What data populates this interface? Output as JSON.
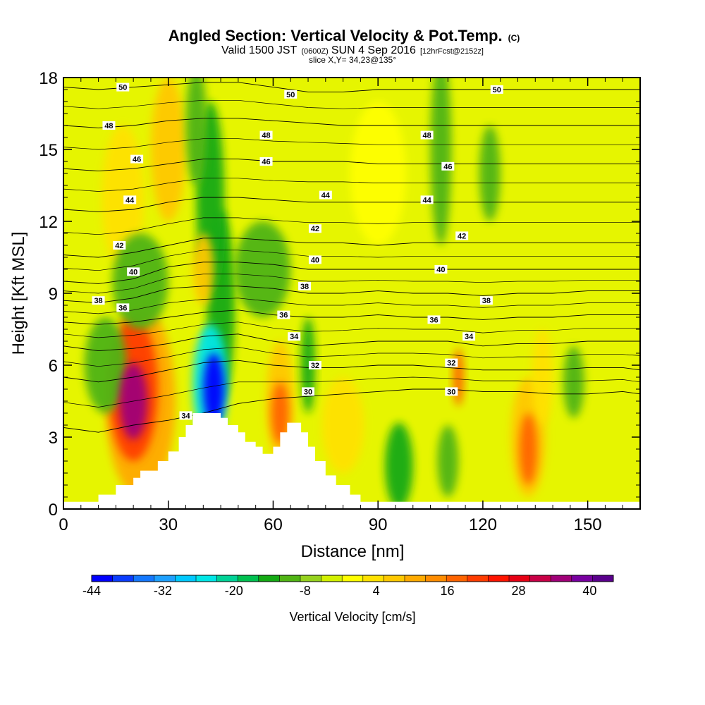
{
  "title": {
    "line1": "Angled Section: Vertical Velocity & Pot.Temp.",
    "line1_suffix": "(C)",
    "line2_a": "Valid 1500 JST",
    "line2_b": "(0600Z)",
    "line2_c": "SUN 4 Sep 2016",
    "line2_d": "[12hrFcst@2152z]",
    "line3": "slice X,Y= 34,23@135°"
  },
  "chart_data": {
    "type": "heatmap",
    "xlabel": "Distance [nm]",
    "ylabel": "Height [Kft MSL]",
    "xlim": [
      0,
      165
    ],
    "ylim": [
      0,
      18
    ],
    "x_ticks": [
      "0",
      "30",
      "60",
      "90",
      "120",
      "150"
    ],
    "x_tick_values": [
      0,
      30,
      60,
      90,
      120,
      150
    ],
    "y_ticks": [
      "0",
      "3",
      "6",
      "9",
      "12",
      "15",
      "18"
    ],
    "y_tick_values": [
      0,
      3,
      6,
      9,
      12,
      15,
      18
    ],
    "colorbar": {
      "title": "Vertical Velocity [cm/s]",
      "min": -44,
      "max": 44,
      "step": 4,
      "tick_labels": [
        "-44",
        "-32",
        "-20",
        "-8",
        "4",
        "16",
        "28",
        "40"
      ],
      "tick_values": [
        -44,
        -32,
        -20,
        -8,
        4,
        16,
        28,
        40
      ],
      "colors": [
        "#0000ff",
        "#0a3cff",
        "#1478ff",
        "#1ea0ff",
        "#00c8ff",
        "#00e6e6",
        "#00d296",
        "#00c050",
        "#14aa14",
        "#50b414",
        "#96d21e",
        "#d2f000",
        "#ffff00",
        "#ffe100",
        "#ffc800",
        "#ffaa00",
        "#ff8c00",
        "#ff6400",
        "#ff3c00",
        "#ff1400",
        "#e60014",
        "#c80046",
        "#a00078",
        "#7800a0",
        "#5a008c"
      ]
    },
    "velocity_cells": [
      {
        "x": 20,
        "y": 4.5,
        "value": 44,
        "sx": 4,
        "sy": 1.6
      },
      {
        "x": 20,
        "y": 5,
        "value": 30,
        "sx": 7,
        "sy": 3
      },
      {
        "x": 22,
        "y": 4.5,
        "value": 16,
        "sx": 10,
        "sy": 4
      },
      {
        "x": 43,
        "y": 5,
        "value": -44,
        "sx": 3,
        "sy": 1.5
      },
      {
        "x": 42,
        "y": 5.2,
        "value": -24,
        "sx": 5,
        "sy": 2.5
      },
      {
        "x": 45,
        "y": 8.5,
        "value": -10,
        "sx": 4,
        "sy": 4
      },
      {
        "x": 42,
        "y": 13,
        "value": -10,
        "sx": 4,
        "sy": 4
      },
      {
        "x": 38,
        "y": 16,
        "value": -8,
        "sx": 3,
        "sy": 2.5
      },
      {
        "x": 30,
        "y": 15,
        "value": 12,
        "sx": 5,
        "sy": 3
      },
      {
        "x": 40,
        "y": 10,
        "value": 14,
        "sx": 3,
        "sy": 1.5
      },
      {
        "x": 17,
        "y": 13,
        "value": 8,
        "sx": 6,
        "sy": 3
      },
      {
        "x": 22,
        "y": 9.5,
        "value": -8,
        "sx": 8,
        "sy": 2
      },
      {
        "x": 12,
        "y": 6,
        "value": -6,
        "sx": 6,
        "sy": 2
      },
      {
        "x": 62,
        "y": 4,
        "value": 26,
        "sx": 2.5,
        "sy": 1.3
      },
      {
        "x": 62,
        "y": 4.5,
        "value": 12,
        "sx": 4,
        "sy": 2.5
      },
      {
        "x": 70,
        "y": 6,
        "value": -10,
        "sx": 2,
        "sy": 2
      },
      {
        "x": 96,
        "y": 1.8,
        "value": -12,
        "sx": 4,
        "sy": 1.8
      },
      {
        "x": 113,
        "y": 5.5,
        "value": 26,
        "sx": 1.5,
        "sy": 1.2
      },
      {
        "x": 110,
        "y": 2,
        "value": -8,
        "sx": 3,
        "sy": 1.5
      },
      {
        "x": 108,
        "y": 15,
        "value": -6,
        "sx": 3,
        "sy": 4
      },
      {
        "x": 122,
        "y": 14,
        "value": -6,
        "sx": 3,
        "sy": 2
      },
      {
        "x": 133,
        "y": 2.5,
        "value": 26,
        "sx": 2.5,
        "sy": 1.5
      },
      {
        "x": 133,
        "y": 3,
        "value": 12,
        "sx": 5,
        "sy": 2.5
      },
      {
        "x": 137,
        "y": 5.5,
        "value": 10,
        "sx": 3,
        "sy": 2
      },
      {
        "x": 146,
        "y": 5.3,
        "value": -8,
        "sx": 3,
        "sy": 1.5
      },
      {
        "x": 80,
        "y": 3.5,
        "value": 8,
        "sx": 6,
        "sy": 2
      },
      {
        "x": 57,
        "y": 10,
        "value": -6,
        "sx": 8,
        "sy": 2
      },
      {
        "x": 90,
        "y": 14,
        "value": 6,
        "sx": 8,
        "sy": 3
      }
    ],
    "terrain": [
      [
        0,
        0.3
      ],
      [
        10,
        0.3
      ],
      [
        10,
        0.6
      ],
      [
        15,
        0.6
      ],
      [
        15,
        1.0
      ],
      [
        20,
        1.0
      ],
      [
        20,
        1.3
      ],
      [
        22,
        1.3
      ],
      [
        22,
        1.6
      ],
      [
        27,
        1.6
      ],
      [
        27,
        2.0
      ],
      [
        30,
        2.0
      ],
      [
        30,
        2.4
      ],
      [
        33,
        2.4
      ],
      [
        33,
        3.0
      ],
      [
        35,
        3.0
      ],
      [
        35,
        3.5
      ],
      [
        37,
        3.5
      ],
      [
        37,
        4.0
      ],
      [
        45,
        4.0
      ],
      [
        45,
        3.8
      ],
      [
        47,
        3.8
      ],
      [
        47,
        3.5
      ],
      [
        50,
        3.5
      ],
      [
        50,
        3.2
      ],
      [
        52,
        3.2
      ],
      [
        52,
        2.8
      ],
      [
        55,
        2.8
      ],
      [
        55,
        2.6
      ],
      [
        57,
        2.6
      ],
      [
        57,
        2.3
      ],
      [
        60,
        2.3
      ],
      [
        60,
        2.6
      ],
      [
        62,
        2.6
      ],
      [
        62,
        3.2
      ],
      [
        64,
        3.2
      ],
      [
        64,
        3.6
      ],
      [
        68,
        3.6
      ],
      [
        68,
        3.2
      ],
      [
        70,
        3.2
      ],
      [
        70,
        2.6
      ],
      [
        72,
        2.6
      ],
      [
        72,
        2.0
      ],
      [
        75,
        2.0
      ],
      [
        75,
        1.4
      ],
      [
        78,
        1.4
      ],
      [
        78,
        1.0
      ],
      [
        82,
        1.0
      ],
      [
        82,
        0.6
      ],
      [
        85,
        0.6
      ],
      [
        85,
        0.3
      ],
      [
        165,
        0.3
      ]
    ],
    "isentropes": [
      {
        "label": "30",
        "y": [
          3.4,
          3.2,
          3.5,
          3.7,
          4.0,
          4.4,
          4.6,
          4.7,
          4.8,
          4.9,
          5.0,
          5.0,
          4.9,
          4.9,
          4.8,
          4.8,
          4.9,
          4.8
        ]
      },
      {
        "label": "32",
        "y": [
          5.5,
          5.3,
          5.5,
          5.8,
          6.1,
          6.2,
          6.0,
          5.9,
          5.9,
          6.0,
          6.0,
          5.9,
          5.8,
          5.8,
          5.8,
          5.9,
          5.9,
          5.8
        ]
      },
      {
        "label": "34",
        "y": [
          6.8,
          6.6,
          6.7,
          6.9,
          7.2,
          7.3,
          7.0,
          6.8,
          6.9,
          7.0,
          7.0,
          7.0,
          6.8,
          6.9,
          6.9,
          7.0,
          7.0,
          7.0
        ]
      },
      {
        "label": "36",
        "y": [
          7.8,
          7.7,
          7.8,
          8.0,
          8.2,
          8.3,
          8.1,
          8.0,
          8.0,
          8.1,
          8.0,
          8.0,
          7.9,
          8.0,
          8.0,
          8.1,
          8.1,
          8.1
        ]
      },
      {
        "label": "38",
        "y": [
          8.7,
          8.6,
          8.8,
          9.2,
          9.3,
          9.3,
          9.2,
          9.0,
          9.0,
          9.1,
          9.0,
          9.0,
          8.9,
          9.0,
          9.0,
          9.1,
          9.1,
          9.1
        ]
      },
      {
        "label": "40",
        "y": [
          9.5,
          9.4,
          9.6,
          10.1,
          10.3,
          10.3,
          10.2,
          10.0,
          10.0,
          10.0,
          10.0,
          10.0,
          10.0,
          10.0,
          10.0,
          10.0,
          10.0,
          10.0
        ]
      },
      {
        "label": "42",
        "y": [
          10.6,
          10.5,
          10.7,
          11.0,
          11.3,
          11.3,
          11.2,
          11.1,
          11.1,
          11.0,
          11.1,
          11.1,
          11.1,
          11.1,
          11.1,
          11.1,
          11.1,
          11.1
        ]
      },
      {
        "label": "44",
        "y": [
          12.5,
          12.4,
          12.5,
          12.8,
          13.0,
          13.0,
          12.9,
          12.8,
          12.8,
          12.8,
          12.8,
          12.8,
          12.8,
          12.8,
          12.8,
          12.8,
          12.8,
          12.8
        ]
      },
      {
        "label": "46",
        "y": [
          14.2,
          14.1,
          14.2,
          14.4,
          14.6,
          14.6,
          14.5,
          14.5,
          14.5,
          14.4,
          14.4,
          14.4,
          14.4,
          14.4,
          14.4,
          14.4,
          14.4,
          14.4
        ]
      },
      {
        "label": "48",
        "y": [
          16.0,
          15.9,
          16.0,
          16.2,
          16.3,
          16.3,
          16.2,
          16.1,
          16.0,
          16.0,
          16.0,
          16.0,
          16.0,
          16.0,
          16.0,
          16.0,
          16.0,
          16.0
        ]
      },
      {
        "label": "50",
        "y": [
          17.6,
          17.5,
          17.6,
          17.7,
          17.8,
          17.8,
          17.6,
          17.4,
          17.4,
          17.5,
          17.5,
          17.5,
          17.5,
          17.5,
          17.5,
          17.5,
          17.5,
          17.5
        ]
      }
    ],
    "isentrope_x": [
      0,
      10,
      20,
      30,
      40,
      50,
      60,
      70,
      80,
      90,
      100,
      110,
      120,
      130,
      140,
      150,
      160,
      165
    ],
    "contour_labels": [
      {
        "text": "50",
        "x": 17,
        "y": 17.6
      },
      {
        "text": "50",
        "x": 65,
        "y": 17.3
      },
      {
        "text": "50",
        "x": 124,
        "y": 17.5
      },
      {
        "text": "48",
        "x": 13,
        "y": 16.0
      },
      {
        "text": "48",
        "x": 58,
        "y": 15.6
      },
      {
        "text": "48",
        "x": 104,
        "y": 15.6
      },
      {
        "text": "46",
        "x": 21,
        "y": 14.6
      },
      {
        "text": "46",
        "x": 58,
        "y": 14.5
      },
      {
        "text": "46",
        "x": 110,
        "y": 14.3
      },
      {
        "text": "44",
        "x": 19,
        "y": 12.9
      },
      {
        "text": "44",
        "x": 75,
        "y": 13.1
      },
      {
        "text": "44",
        "x": 104,
        "y": 12.9
      },
      {
        "text": "42",
        "x": 16,
        "y": 11.0
      },
      {
        "text": "42",
        "x": 72,
        "y": 11.7
      },
      {
        "text": "42",
        "x": 114,
        "y": 11.4
      },
      {
        "text": "40",
        "x": 20,
        "y": 9.9
      },
      {
        "text": "40",
        "x": 72,
        "y": 10.4
      },
      {
        "text": "40",
        "x": 108,
        "y": 10.0
      },
      {
        "text": "38",
        "x": 10,
        "y": 8.7
      },
      {
        "text": "38",
        "x": 69,
        "y": 9.3
      },
      {
        "text": "38",
        "x": 121,
        "y": 8.7
      },
      {
        "text": "36",
        "x": 17,
        "y": 8.4
      },
      {
        "text": "36",
        "x": 63,
        "y": 8.1
      },
      {
        "text": "36",
        "x": 106,
        "y": 7.9
      },
      {
        "text": "34",
        "x": 35,
        "y": 3.9
      },
      {
        "text": "34",
        "x": 66,
        "y": 7.2
      },
      {
        "text": "34",
        "x": 116,
        "y": 7.2
      },
      {
        "text": "32",
        "x": 72,
        "y": 6.0
      },
      {
        "text": "32",
        "x": 111,
        "y": 6.1
      },
      {
        "text": "30",
        "x": 70,
        "y": 4.9
      },
      {
        "text": "30",
        "x": 111,
        "y": 4.9
      }
    ]
  }
}
